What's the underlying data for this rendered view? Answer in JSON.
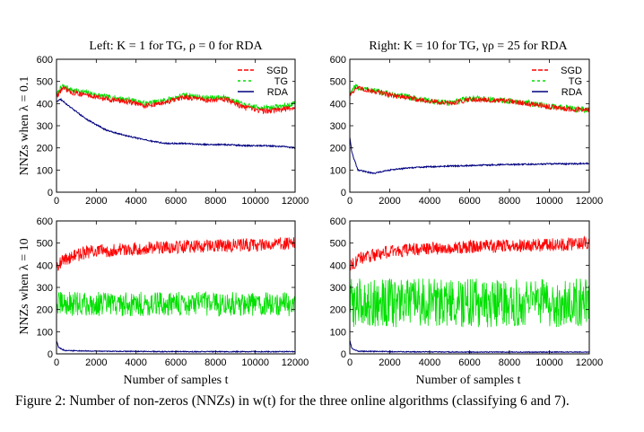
{
  "figure": {
    "caption": "Figure 2: Number of non-zeros (NNZs) in w(t) for the three online algorithms (classifying 6 and 7).",
    "row_labels": [
      "NNZs when λ = 0.1",
      "NNZs when λ = 10"
    ]
  },
  "colors": {
    "SGD": "#ff0000",
    "TG": "#00e000",
    "RDA": "#000080"
  },
  "chart_data": [
    {
      "id": "top-left",
      "type": "line",
      "title": "Left: K = 1 for TG, ρ = 0 for RDA",
      "xlabel": "",
      "ylabel": "NNZs when λ = 0.1",
      "xlim": [
        0,
        12000
      ],
      "ylim": [
        0,
        600
      ],
      "xticks": [
        0,
        2000,
        4000,
        6000,
        8000,
        10000,
        12000
      ],
      "yticks": [
        0,
        100,
        200,
        300,
        400,
        500,
        600
      ],
      "legend": [
        "SGD",
        "TG",
        "RDA"
      ],
      "series": [
        {
          "name": "TG",
          "noise": 12,
          "x": [
            0,
            300,
            800,
            1500,
            2500,
            3500,
            4500,
            5500,
            6500,
            7500,
            8500,
            9500,
            10500,
            11500,
            12000
          ],
          "y": [
            440,
            480,
            460,
            450,
            430,
            420,
            400,
            415,
            440,
            425,
            430,
            390,
            380,
            390,
            400
          ]
        },
        {
          "name": "SGD",
          "noise": 12,
          "x": [
            0,
            300,
            800,
            1500,
            2500,
            3500,
            4500,
            5500,
            6500,
            7500,
            8500,
            9500,
            10500,
            11500,
            12000
          ],
          "y": [
            430,
            470,
            450,
            440,
            420,
            410,
            390,
            405,
            430,
            415,
            420,
            380,
            365,
            375,
            385
          ]
        },
        {
          "name": "RDA",
          "noise": 3,
          "x": [
            0,
            200,
            600,
            1500,
            2500,
            3500,
            4500,
            5500,
            6500,
            7500,
            8500,
            9500,
            10500,
            11500,
            12000
          ],
          "y": [
            410,
            420,
            390,
            330,
            280,
            255,
            235,
            220,
            220,
            215,
            215,
            210,
            210,
            205,
            200
          ]
        }
      ]
    },
    {
      "id": "top-right",
      "type": "line",
      "title": "Right: K = 10 for TG, γρ = 25 for RDA",
      "xlabel": "",
      "ylabel": "",
      "xlim": [
        0,
        12000
      ],
      "ylim": [
        0,
        600
      ],
      "xticks": [
        0,
        2000,
        4000,
        6000,
        8000,
        10000,
        12000
      ],
      "yticks": [
        0,
        100,
        200,
        300,
        400,
        500,
        600
      ],
      "legend": [
        "SGD",
        "TG",
        "RDA"
      ],
      "series": [
        {
          "name": "SGD",
          "noise": 12,
          "x": [
            0,
            300,
            1000,
            2000,
            3000,
            4000,
            5000,
            6000,
            7000,
            8000,
            9000,
            10000,
            11000,
            12000
          ],
          "y": [
            440,
            470,
            460,
            440,
            425,
            410,
            400,
            420,
            415,
            410,
            400,
            385,
            375,
            370
          ]
        },
        {
          "name": "TG",
          "noise": 14,
          "x": [
            0,
            300,
            1000,
            2000,
            3000,
            4000,
            5000,
            6000,
            7000,
            8000,
            9000,
            10000,
            11000,
            12000
          ],
          "y": [
            445,
            475,
            462,
            442,
            428,
            412,
            402,
            425,
            418,
            412,
            402,
            388,
            378,
            372
          ]
        },
        {
          "name": "RDA",
          "noise": 3,
          "x": [
            0,
            100,
            400,
            1200,
            2000,
            3000,
            4000,
            5000,
            6000,
            7000,
            8000,
            9000,
            10000,
            11000,
            12000
          ],
          "y": [
            250,
            180,
            100,
            85,
            100,
            110,
            115,
            118,
            120,
            123,
            125,
            126,
            128,
            128,
            130
          ]
        }
      ]
    },
    {
      "id": "bottom-left",
      "type": "line",
      "title": "",
      "xlabel": "Number of samples t",
      "ylabel": "NNZs when λ = 10",
      "xlim": [
        0,
        12000
      ],
      "ylim": [
        0,
        600
      ],
      "xticks": [
        0,
        2000,
        4000,
        6000,
        8000,
        10000,
        12000
      ],
      "yticks": [
        0,
        100,
        200,
        300,
        400,
        500,
        600
      ],
      "legend": [],
      "series": [
        {
          "name": "SGD",
          "noise": 30,
          "x": [
            0,
            500,
            1500,
            3000,
            5000,
            7000,
            9000,
            11000,
            12000
          ],
          "y": [
            400,
            430,
            460,
            470,
            480,
            485,
            490,
            495,
            500
          ]
        },
        {
          "name": "TG",
          "noise": 55,
          "x": [
            0,
            3000,
            6000,
            9000,
            12000
          ],
          "y": [
            225,
            225,
            225,
            225,
            225
          ]
        },
        {
          "name": "RDA",
          "noise": 2,
          "x": [
            0,
            100,
            400,
            2000,
            6000,
            12000
          ],
          "y": [
            60,
            30,
            15,
            12,
            10,
            10
          ]
        }
      ]
    },
    {
      "id": "bottom-right",
      "type": "line",
      "title": "",
      "xlabel": "Number of samples t",
      "ylabel": "",
      "xlim": [
        0,
        12000
      ],
      "ylim": [
        0,
        600
      ],
      "xticks": [
        0,
        2000,
        4000,
        6000,
        8000,
        10000,
        12000
      ],
      "yticks": [
        0,
        100,
        200,
        300,
        400,
        500,
        600
      ],
      "legend": [],
      "series": [
        {
          "name": "SGD",
          "noise": 30,
          "x": [
            0,
            500,
            1500,
            3000,
            5000,
            7000,
            9000,
            11000,
            12000
          ],
          "y": [
            400,
            430,
            455,
            470,
            480,
            485,
            490,
            495,
            500
          ]
        },
        {
          "name": "TG",
          "noise": 110,
          "x": [
            0,
            3000,
            6000,
            9000,
            12000
          ],
          "y": [
            230,
            230,
            230,
            230,
            230
          ]
        },
        {
          "name": "RDA",
          "noise": 2,
          "x": [
            0,
            100,
            400,
            2000,
            6000,
            12000
          ],
          "y": [
            60,
            25,
            12,
            10,
            8,
            8
          ]
        }
      ]
    }
  ]
}
